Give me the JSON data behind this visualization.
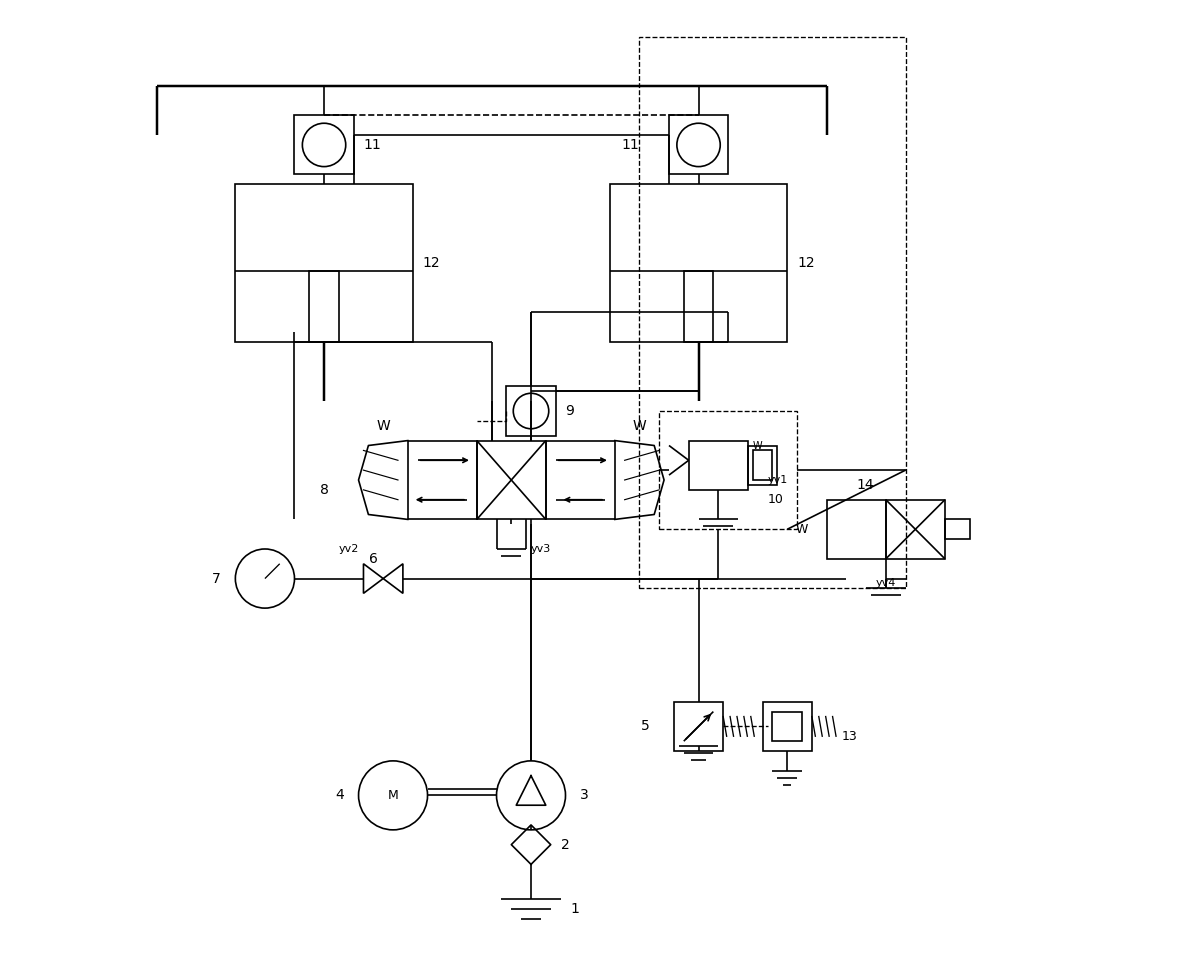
{
  "bg_color": "#ffffff",
  "line_color": "#000000",
  "figsize": [
    12.0,
    9.6
  ],
  "dpi": 100,
  "xlim": [
    0,
    110
  ],
  "ylim": [
    0,
    96
  ]
}
